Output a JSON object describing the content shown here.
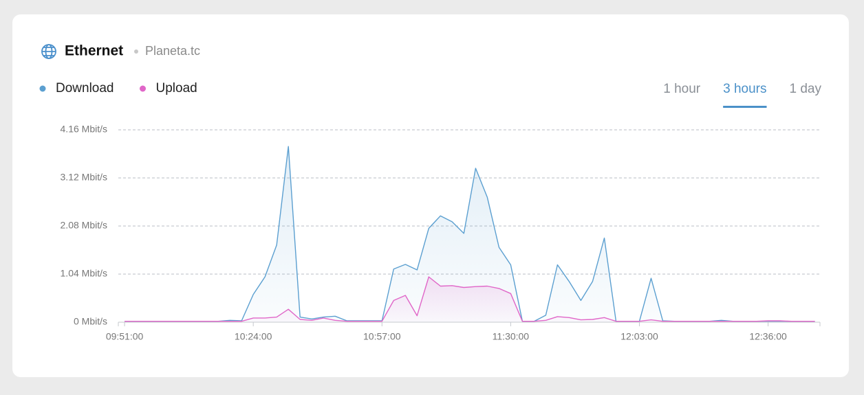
{
  "header": {
    "title": "Ethernet",
    "subtitle": "Planeta.tc"
  },
  "tabs": [
    "1 hour",
    "3 hours",
    "1 day"
  ],
  "active_tab": 1,
  "chart_data": {
    "type": "area",
    "x": [
      "09:51:00",
      "09:54:00",
      "09:57:00",
      "10:00:00",
      "10:03:00",
      "10:06:00",
      "10:09:00",
      "10:12:00",
      "10:15:00",
      "10:18:00",
      "10:21:00",
      "10:24:00",
      "10:27:00",
      "10:30:00",
      "10:33:00",
      "10:36:00",
      "10:39:00",
      "10:42:00",
      "10:45:00",
      "10:48:00",
      "10:51:00",
      "10:54:00",
      "10:57:00",
      "11:00:00",
      "11:03:00",
      "11:06:00",
      "11:09:00",
      "11:12:00",
      "11:15:00",
      "11:18:00",
      "11:21:00",
      "11:24:00",
      "11:27:00",
      "11:30:00",
      "11:33:00",
      "11:36:00",
      "11:39:00",
      "11:42:00",
      "11:45:00",
      "11:48:00",
      "11:51:00",
      "11:54:00",
      "11:57:00",
      "12:00:00",
      "12:03:00",
      "12:06:00",
      "12:09:00",
      "12:12:00",
      "12:15:00",
      "12:18:00",
      "12:21:00",
      "12:24:00",
      "12:27:00",
      "12:30:00",
      "12:33:00",
      "12:36:00",
      "12:39:00",
      "12:42:00",
      "12:45:00",
      "12:48:00"
    ],
    "series": [
      {
        "name": "Download",
        "color": "#5b9fd0",
        "values": [
          0.02,
          0.02,
          0.02,
          0.02,
          0.02,
          0.02,
          0.02,
          0.02,
          0.02,
          0.04,
          0.03,
          0.6,
          0.98,
          1.67,
          3.8,
          0.11,
          0.07,
          0.11,
          0.13,
          0.03,
          0.03,
          0.03,
          0.03,
          1.15,
          1.25,
          1.13,
          2.03,
          2.3,
          2.17,
          1.92,
          3.33,
          2.7,
          1.62,
          1.24,
          0.02,
          0.02,
          0.15,
          1.24,
          0.88,
          0.47,
          0.88,
          1.82,
          0.02,
          0.02,
          0.02,
          0.95,
          0.03,
          0.02,
          0.02,
          0.02,
          0.02,
          0.04,
          0.02,
          0.02,
          0.02,
          0.02,
          0.02,
          0.02,
          0.02,
          0.02
        ]
      },
      {
        "name": "Upload",
        "color": "#e066c8",
        "values": [
          0.02,
          0.02,
          0.02,
          0.02,
          0.02,
          0.02,
          0.02,
          0.02,
          0.02,
          0.02,
          0.02,
          0.09,
          0.09,
          0.11,
          0.28,
          0.06,
          0.04,
          0.09,
          0.04,
          0.02,
          0.02,
          0.02,
          0.02,
          0.47,
          0.58,
          0.14,
          0.98,
          0.78,
          0.79,
          0.75,
          0.77,
          0.78,
          0.73,
          0.62,
          0.02,
          0.02,
          0.04,
          0.12,
          0.1,
          0.05,
          0.06,
          0.1,
          0.02,
          0.02,
          0.02,
          0.05,
          0.02,
          0.02,
          0.02,
          0.02,
          0.02,
          0.02,
          0.02,
          0.02,
          0.02,
          0.03,
          0.03,
          0.02,
          0.02,
          0.02
        ]
      }
    ],
    "xlim": [
      "09:49:24",
      "12:49:18"
    ],
    "xticks": [
      "09:51:00",
      "10:24:00",
      "10:57:00",
      "11:30:00",
      "12:03:00",
      "12:36:00"
    ],
    "ylim": [
      0,
      4.16
    ],
    "yticks": [
      {
        "value": 0,
        "label": "0 Mbit/s"
      },
      {
        "value": 1.04,
        "label": "1.04 Mbit/s"
      },
      {
        "value": 2.08,
        "label": "2.08 Mbit/s"
      },
      {
        "value": 3.12,
        "label": "3.12 Mbit/s"
      },
      {
        "value": 4.16,
        "label": "4.16 Mbit/s"
      }
    ],
    "grid": true
  }
}
